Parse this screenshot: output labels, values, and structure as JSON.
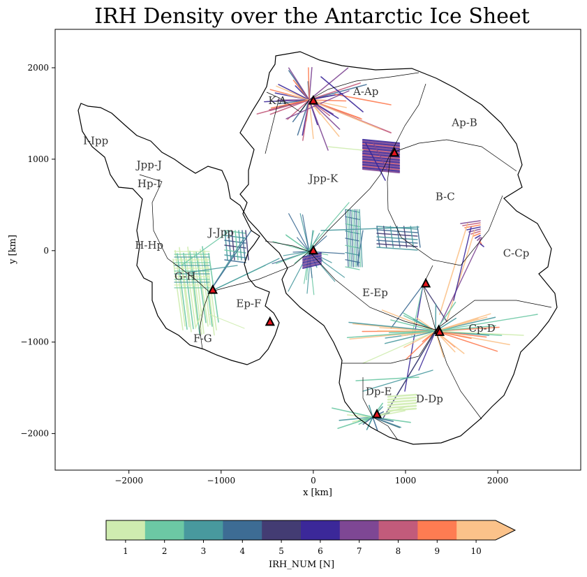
{
  "title": "IRH Density over the Antarctic Ice Sheet",
  "axes": {
    "xlabel": "x [km]",
    "ylabel": "y [km]",
    "xlim": [
      -2800,
      2900
    ],
    "ylim": [
      -2400,
      2420
    ],
    "xticks": [
      -2000,
      -1000,
      0,
      1000,
      2000
    ],
    "yticks": [
      -2000,
      -1000,
      0,
      1000,
      2000
    ],
    "xtick_labels": [
      "−2000",
      "−1000",
      "0",
      "1000",
      "2000"
    ],
    "ytick_labels": [
      "−2000",
      "−1000",
      "0",
      "1000",
      "2000"
    ]
  },
  "colorbar": {
    "label": "IRH_NUM [N]",
    "tick_labels": [
      "1",
      "2",
      "3",
      "4",
      "5",
      "6",
      "7",
      "8",
      "9",
      "10"
    ],
    "colors": [
      "#cfecb0",
      "#6cc8a4",
      "#48999e",
      "#3d6c94",
      "#433c73",
      "#3b2899",
      "#7e4794",
      "#c25b7b",
      "#fe7c52",
      "#fbc28a"
    ],
    "extend": "max"
  },
  "regions": [
    {
      "name": "K-A",
      "x": -390,
      "y": 1640
    },
    {
      "name": "A-Ap",
      "x": 570,
      "y": 1740
    },
    {
      "name": "Ap-B",
      "x": 1640,
      "y": 1400
    },
    {
      "name": "I-Ipp",
      "x": -2360,
      "y": 1200
    },
    {
      "name": "Jpp-J",
      "x": -1780,
      "y": 940
    },
    {
      "name": "Hp-I",
      "x": -1780,
      "y": 730
    },
    {
      "name": "Jpp-K",
      "x": 110,
      "y": 790
    },
    {
      "name": "B-C",
      "x": 1430,
      "y": 590
    },
    {
      "name": "J-Jpp",
      "x": -1000,
      "y": 200
    },
    {
      "name": "H-Hp",
      "x": -1780,
      "y": 60
    },
    {
      "name": "C-Cp",
      "x": 2200,
      "y": -30
    },
    {
      "name": "G-H",
      "x": -1390,
      "y": -280
    },
    {
      "name": "E-Ep",
      "x": 670,
      "y": -460
    },
    {
      "name": "Ep-F",
      "x": -700,
      "y": -580
    },
    {
      "name": "Cp-D",
      "x": 1830,
      "y": -850
    },
    {
      "name": "F-G",
      "x": -1200,
      "y": -960
    },
    {
      "name": "Dp-E",
      "x": 710,
      "y": -1540
    },
    {
      "name": "D-Dp",
      "x": 1260,
      "y": -1620
    }
  ],
  "stations": [
    {
      "x": 0,
      "y": 1640
    },
    {
      "x": 880,
      "y": 1070
    },
    {
      "x": 0,
      "y": 0
    },
    {
      "x": -1090,
      "y": -430
    },
    {
      "x": 1220,
      "y": -360
    },
    {
      "x": -470,
      "y": -780
    },
    {
      "x": 1360,
      "y": -870
    },
    {
      "x": 1370,
      "y": -890
    },
    {
      "x": 690,
      "y": -1790
    }
  ],
  "station_style": {
    "fill": "#e8141c",
    "edge": "#000000"
  }
}
